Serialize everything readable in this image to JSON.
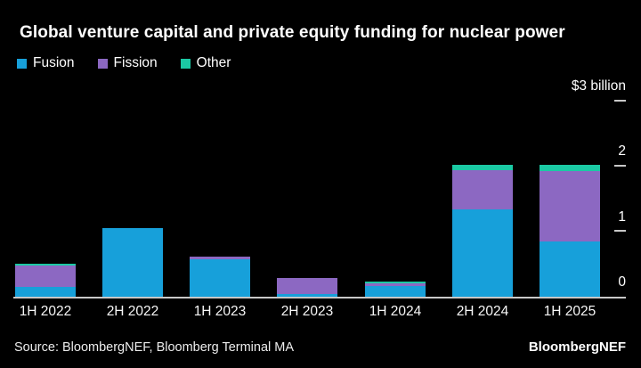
{
  "title": "Global venture capital and private equity funding for nuclear power",
  "legend": {
    "items": [
      {
        "label": "Fusion",
        "color": "#17A0DA"
      },
      {
        "label": "Fission",
        "color": "#8C68C2"
      },
      {
        "label": "Other",
        "color": "#1BC9A4"
      }
    ]
  },
  "chart_data": {
    "type": "bar",
    "stacked": true,
    "title": "Global venture capital and private equity funding for nuclear power",
    "categories": [
      "1H 2022",
      "2H 2022",
      "1H 2023",
      "2H 2023",
      "1H 2024",
      "2H 2024",
      "1H 2025"
    ],
    "series": [
      {
        "name": "Fusion",
        "color": "#17A0DA",
        "values": [
          0.15,
          1.05,
          0.57,
          0.04,
          0.17,
          1.34,
          0.85
        ]
      },
      {
        "name": "Fission",
        "color": "#8C68C2",
        "values": [
          0.33,
          0,
          0.04,
          0.24,
          0.03,
          0.6,
          1.07
        ]
      },
      {
        "name": "Other",
        "color": "#1BC9A4",
        "values": [
          0.03,
          0,
          0,
          0,
          0.03,
          0.08,
          0.1
        ]
      }
    ],
    "ylim": [
      0,
      3
    ],
    "yticks": [
      {
        "value": 3,
        "label": "$3 billion"
      },
      {
        "value": 2,
        "label": "2"
      },
      {
        "value": 1,
        "label": "1"
      },
      {
        "value": 0,
        "label": "0"
      }
    ],
    "grid": false,
    "legend_position": "top-left",
    "axis_line_color": "#c8c8c8",
    "background_color": "#000000"
  },
  "footer": {
    "source": "Source: BloombergNEF, Bloomberg Terminal MA",
    "brand": "BloombergNEF"
  }
}
